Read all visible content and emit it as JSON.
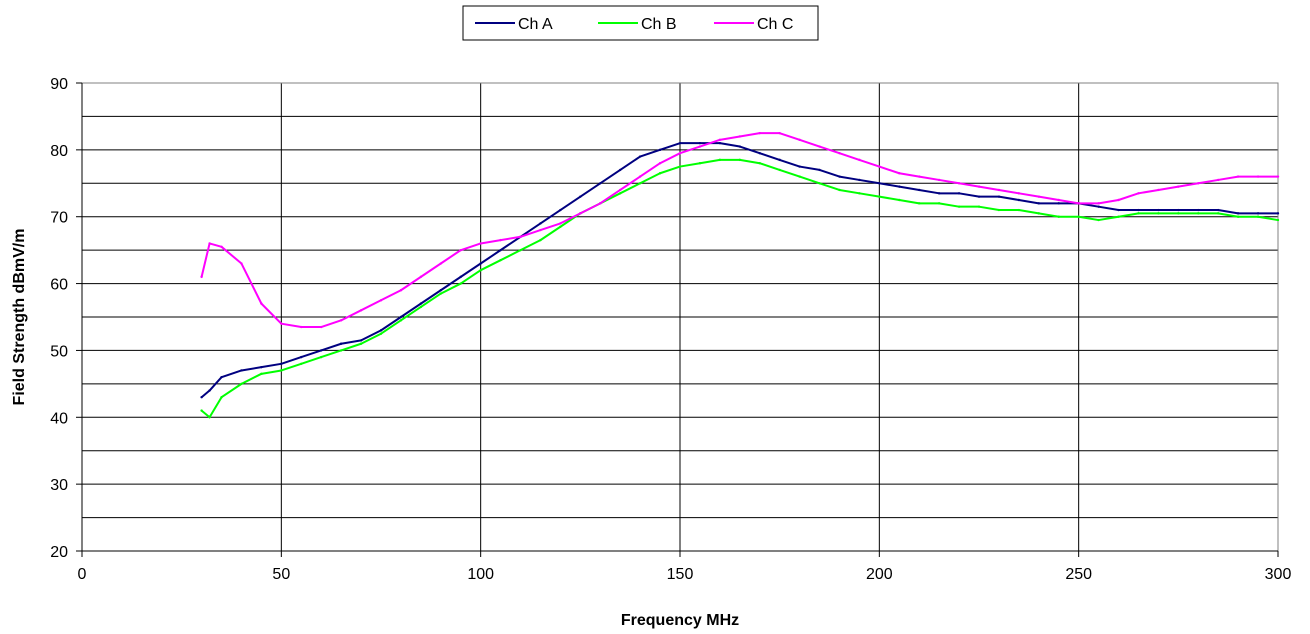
{
  "chart_data": {
    "type": "line",
    "title": "",
    "xlabel": "Frequency MHz",
    "ylabel": "Field Strength dBmV/m",
    "xlim": [
      0,
      300
    ],
    "ylim": [
      20,
      90
    ],
    "x_ticks": [
      0,
      50,
      100,
      150,
      200,
      250,
      300
    ],
    "y_ticks": [
      20,
      30,
      40,
      50,
      60,
      70,
      80,
      90
    ],
    "grid": true,
    "legend_position": "top-center",
    "x": [
      30,
      32,
      35,
      40,
      45,
      50,
      55,
      60,
      65,
      70,
      75,
      80,
      85,
      90,
      95,
      100,
      105,
      110,
      115,
      120,
      125,
      130,
      135,
      140,
      145,
      150,
      155,
      160,
      165,
      170,
      175,
      180,
      185,
      190,
      195,
      200,
      205,
      210,
      215,
      220,
      225,
      230,
      235,
      240,
      245,
      250,
      255,
      260,
      265,
      270,
      275,
      280,
      285,
      290,
      295,
      300
    ],
    "series": [
      {
        "name": "Ch A",
        "color": "#000080",
        "values": [
          43,
          44,
          46,
          47,
          47.5,
          48,
          49,
          50,
          51,
          51.5,
          53,
          55,
          57,
          59,
          61,
          63,
          65,
          67,
          69,
          71,
          73,
          75,
          77,
          79,
          80,
          81,
          81,
          81,
          80.5,
          79.5,
          78.5,
          77.5,
          77,
          76,
          75.5,
          75,
          74.5,
          74,
          73.5,
          73.5,
          73,
          73,
          72.5,
          72,
          72,
          72,
          71.5,
          71,
          71,
          71,
          71,
          71,
          71,
          70.5,
          70.5,
          70.5
        ]
      },
      {
        "name": "Ch B",
        "color": "#00FF00",
        "values": [
          41,
          40,
          43,
          45,
          46.5,
          47,
          48,
          49,
          50,
          51,
          52.5,
          54.5,
          56.5,
          58.5,
          60,
          62,
          63.5,
          65,
          66.5,
          68.5,
          70.5,
          72,
          73.5,
          75,
          76.5,
          77.5,
          78,
          78.5,
          78.5,
          78,
          77,
          76,
          75,
          74,
          73.5,
          73,
          72.5,
          72,
          72,
          71.5,
          71.5,
          71,
          71,
          70.5,
          70,
          70,
          69.5,
          70,
          70.5,
          70.5,
          70.5,
          70.5,
          70.5,
          70,
          70,
          69.5
        ]
      },
      {
        "name": "Ch C",
        "color": "#FF00FF",
        "values": [
          61,
          66,
          65.5,
          63,
          57,
          54,
          53.5,
          53.5,
          54.5,
          56,
          57.5,
          59,
          61,
          63,
          65,
          66,
          66.5,
          67,
          68,
          69,
          70.5,
          72,
          74,
          76,
          78,
          79.5,
          80.5,
          81.5,
          82,
          82.5,
          82.5,
          81.5,
          80.5,
          79.5,
          78.5,
          77.5,
          76.5,
          76,
          75.5,
          75,
          74.5,
          74,
          73.5,
          73,
          72.5,
          72,
          72,
          72.5,
          73.5,
          74,
          74.5,
          75,
          75.5,
          76,
          76,
          76
        ]
      }
    ]
  }
}
